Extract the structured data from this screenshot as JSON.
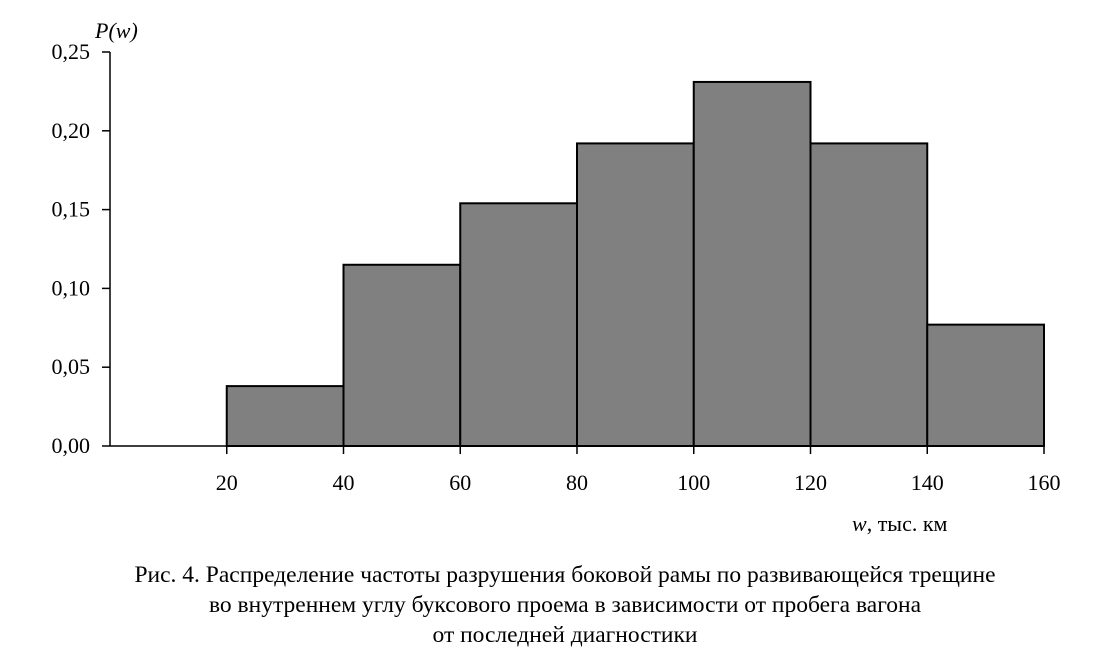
{
  "chart_data": {
    "type": "bar",
    "bins": [
      {
        "from": 20,
        "to": 40,
        "value": 0.038
      },
      {
        "from": 40,
        "to": 60,
        "value": 0.115
      },
      {
        "from": 60,
        "to": 80,
        "value": 0.154
      },
      {
        "from": 80,
        "to": 100,
        "value": 0.192
      },
      {
        "from": 100,
        "to": 120,
        "value": 0.231
      },
      {
        "from": 120,
        "to": 140,
        "value": 0.192
      },
      {
        "from": 140,
        "to": 160,
        "value": 0.077
      }
    ],
    "x_ticks": [
      "20",
      "40",
      "60",
      "80",
      "100",
      "120",
      "140",
      "160"
    ],
    "y_ticks": [
      "0,00",
      "0,05",
      "0,10",
      "0,15",
      "0,20",
      "0,25"
    ],
    "xlim": [
      0,
      160
    ],
    "ylim": [
      0,
      0.25
    ],
    "ylabel": "P(w)",
    "xlabel_var": "w",
    "xlabel_unit": ", тыс. км",
    "bar_color": "#808080",
    "grid": false
  },
  "caption": {
    "line1": "Рис. 4. Распределение частоты разрушения боковой рамы по развивающейся трещине",
    "line2": "во внутреннем углу буксового проема в зависимости от пробега вагона",
    "line3": "от последней диагностики"
  }
}
